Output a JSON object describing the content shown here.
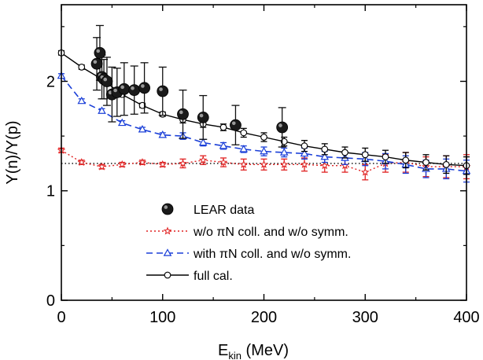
{
  "chart_data": {
    "type": "scatter",
    "xlabel_main": "E",
    "xlabel_sub": "kin",
    "xlabel_unit": " (MeV)",
    "ylabel": "Y(n)/Y(p)",
    "xlim": [
      0,
      400
    ],
    "ylim": [
      0,
      2.7
    ],
    "x_ticks": [
      0,
      100,
      200,
      300,
      400
    ],
    "y_ticks": [
      0,
      1,
      2
    ],
    "grid": false,
    "legend_position": "center-left",
    "reference_line": {
      "y": 1.25,
      "style": "dotted",
      "color": "#000000"
    },
    "series": [
      {
        "name": "LEAR data",
        "style": "big-filled-circle",
        "color": "#111111",
        "x": [
          35,
          38,
          40,
          42,
          45,
          50,
          55,
          62,
          72,
          82,
          100,
          120,
          140,
          172,
          218
        ],
        "y": [
          2.16,
          2.26,
          2.04,
          2.02,
          2.0,
          1.88,
          1.9,
          1.93,
          1.92,
          1.94,
          1.91,
          1.7,
          1.67,
          1.6,
          1.58
        ],
        "err": [
          0.24,
          0.25,
          0.2,
          0.18,
          0.22,
          0.25,
          0.22,
          0.24,
          0.22,
          0.23,
          0.22,
          0.22,
          0.2,
          0.18,
          0.18
        ]
      },
      {
        "name": "w/o  πN coll. and w/o symm.",
        "style": "star-dotted",
        "color": "#e02020",
        "x": [
          0,
          20,
          40,
          60,
          80,
          100,
          120,
          140,
          160,
          180,
          200,
          220,
          240,
          260,
          280,
          300,
          320,
          340,
          360,
          380,
          400
        ],
        "y": [
          1.37,
          1.26,
          1.22,
          1.24,
          1.26,
          1.24,
          1.25,
          1.28,
          1.26,
          1.24,
          1.24,
          1.24,
          1.24,
          1.23,
          1.23,
          1.17,
          1.25,
          1.26,
          1.22,
          1.22,
          1.22
        ],
        "err": [
          0.02,
          0.02,
          0.02,
          0.02,
          0.02,
          0.02,
          0.04,
          0.04,
          0.04,
          0.05,
          0.05,
          0.05,
          0.06,
          0.06,
          0.06,
          0.07,
          0.08,
          0.09,
          0.09,
          0.1,
          0.11
        ]
      },
      {
        "name": "with πN coll. and w/o symm.",
        "style": "triangle-dashed",
        "color": "#1a3fd8",
        "x": [
          0,
          20,
          40,
          60,
          80,
          100,
          120,
          140,
          160,
          180,
          200,
          220,
          240,
          260,
          280,
          300,
          320,
          340,
          360,
          380,
          400
        ],
        "y": [
          2.05,
          1.82,
          1.73,
          1.62,
          1.56,
          1.51,
          1.5,
          1.44,
          1.41,
          1.38,
          1.36,
          1.35,
          1.34,
          1.31,
          1.3,
          1.29,
          1.27,
          1.24,
          1.2,
          1.2,
          1.18
        ],
        "err": [
          0.02,
          0.02,
          0.02,
          0.02,
          0.02,
          0.02,
          0.03,
          0.03,
          0.03,
          0.03,
          0.04,
          0.04,
          0.05,
          0.05,
          0.06,
          0.06,
          0.07,
          0.08,
          0.08,
          0.09,
          0.1
        ]
      },
      {
        "name": "full cal.",
        "style": "open-circle-solid",
        "color": "#000000",
        "x": [
          0,
          20,
          40,
          60,
          80,
          100,
          120,
          140,
          160,
          180,
          200,
          220,
          240,
          260,
          280,
          300,
          320,
          340,
          360,
          380,
          400
        ],
        "y": [
          2.26,
          2.13,
          2.02,
          1.88,
          1.78,
          1.7,
          1.65,
          1.61,
          1.58,
          1.53,
          1.49,
          1.45,
          1.41,
          1.38,
          1.35,
          1.33,
          1.31,
          1.28,
          1.26,
          1.24,
          1.23
        ],
        "err": [
          0.02,
          0.02,
          0.02,
          0.02,
          0.02,
          0.02,
          0.03,
          0.03,
          0.03,
          0.04,
          0.04,
          0.04,
          0.05,
          0.05,
          0.05,
          0.06,
          0.06,
          0.07,
          0.07,
          0.08,
          0.08
        ]
      }
    ]
  }
}
